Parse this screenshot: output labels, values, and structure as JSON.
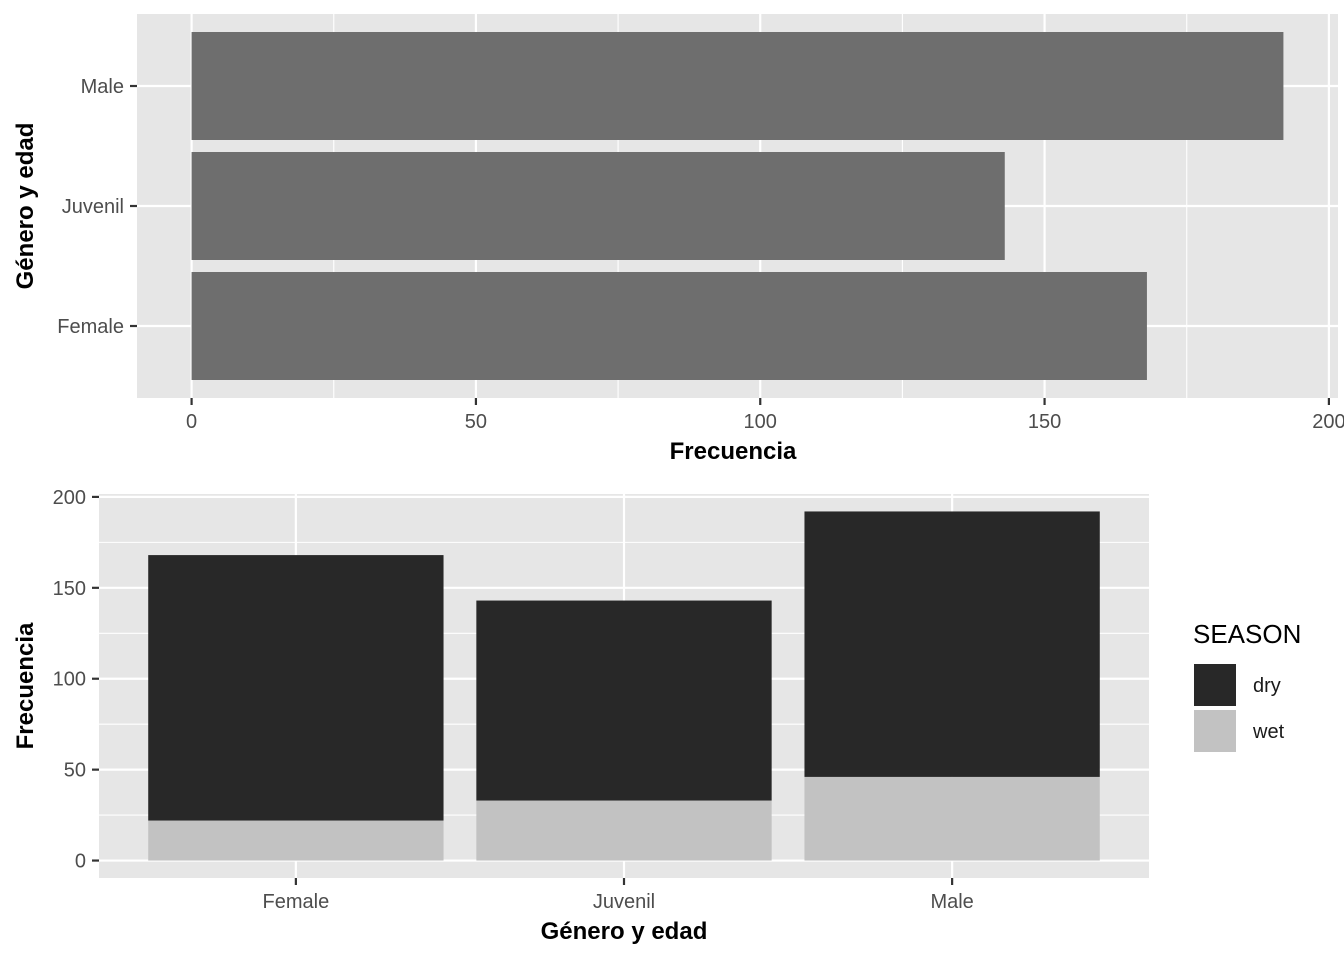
{
  "chart_data": [
    {
      "type": "bar",
      "orientation": "horizontal",
      "categories": [
        "Female",
        "Juvenil",
        "Male"
      ],
      "values": [
        168,
        143,
        192
      ],
      "xlabel": "Frecuencia",
      "ylabel": "Género y edad",
      "xlim": [
        -9.6,
        201.6
      ],
      "xticks": [
        0,
        50,
        100,
        150,
        200
      ],
      "bar_color": "#6e6e6e",
      "grid": true
    },
    {
      "type": "bar",
      "stacked": true,
      "categories": [
        "Female",
        "Juvenil",
        "Male"
      ],
      "series": [
        {
          "name": "dry",
          "values": [
            146,
            110,
            146
          ],
          "color": "#282828"
        },
        {
          "name": "wet",
          "values": [
            22,
            33,
            46
          ],
          "color": "#c2c2c2"
        }
      ],
      "xlabel": "Género y edad",
      "ylabel": "Frecuencia",
      "ylim": [
        -9.6,
        201.6
      ],
      "yticks": [
        0,
        50,
        100,
        150,
        200
      ],
      "legend": {
        "title": "SEASON",
        "position": "right"
      },
      "grid": true
    }
  ]
}
